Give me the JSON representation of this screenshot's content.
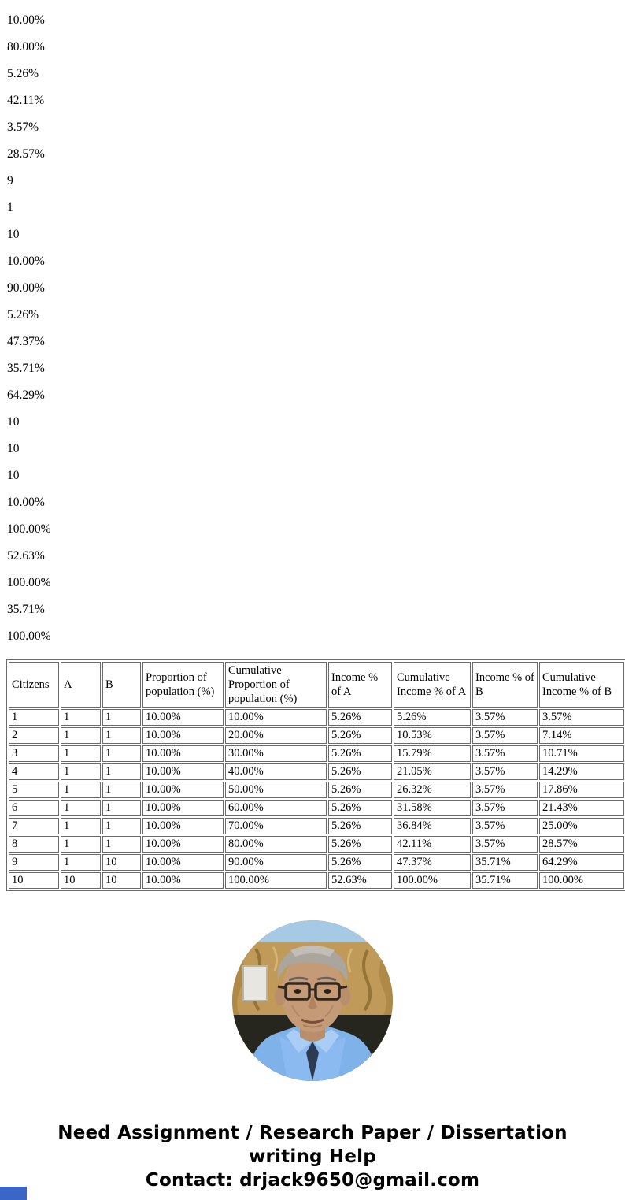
{
  "values_list": [
    "10.00%",
    "80.00%",
    "5.26%",
    "42.11%",
    "3.57%",
    "28.57%",
    "9",
    "1",
    "10",
    "10.00%",
    "90.00%",
    "5.26%",
    "47.37%",
    "35.71%",
    "64.29%",
    "10",
    "10",
    "10",
    "10.00%",
    "100.00%",
    "52.63%",
    "100.00%",
    "35.71%",
    "100.00%"
  ],
  "table": {
    "headers": [
      "Citizens",
      "A",
      "B",
      "Proportion of population (%)",
      "Cumulative Proportion of population (%)",
      "Income % of A",
      "Cumulative Income % of A",
      "Income % of B",
      "Cumulative Income % of B"
    ],
    "rows": [
      [
        "1",
        "1",
        "1",
        "10.00%",
        "10.00%",
        "5.26%",
        "5.26%",
        "3.57%",
        "3.57%"
      ],
      [
        "2",
        "1",
        "1",
        "10.00%",
        "20.00%",
        "5.26%",
        "10.53%",
        "3.57%",
        "7.14%"
      ],
      [
        "3",
        "1",
        "1",
        "10.00%",
        "30.00%",
        "5.26%",
        "15.79%",
        "3.57%",
        "10.71%"
      ],
      [
        "4",
        "1",
        "1",
        "10.00%",
        "40.00%",
        "5.26%",
        "21.05%",
        "3.57%",
        "14.29%"
      ],
      [
        "5",
        "1",
        "1",
        "10.00%",
        "50.00%",
        "5.26%",
        "26.32%",
        "3.57%",
        "17.86%"
      ],
      [
        "6",
        "1",
        "1",
        "10.00%",
        "60.00%",
        "5.26%",
        "31.58%",
        "3.57%",
        "21.43%"
      ],
      [
        "7",
        "1",
        "1",
        "10.00%",
        "70.00%",
        "5.26%",
        "36.84%",
        "3.57%",
        "25.00%"
      ],
      [
        "8",
        "1",
        "1",
        "10.00%",
        "80.00%",
        "5.26%",
        "42.11%",
        "3.57%",
        "28.57%"
      ],
      [
        "9",
        "1",
        "10",
        "10.00%",
        "90.00%",
        "5.26%",
        "47.37%",
        "35.71%",
        "64.29%"
      ],
      [
        "10",
        "10",
        "10",
        "10.00%",
        "100.00%",
        "52.63%",
        "100.00%",
        "35.71%",
        "100.00%"
      ]
    ]
  },
  "avatar": {
    "icon": "tutor-photo-icon",
    "description": "circular photo of a gray-haired man with glasses in a light blue shirt"
  },
  "footer": {
    "line1": "Need Assignment / Research Paper / Dissertation",
    "line2": "writing Help",
    "line3": "Contact: drjack9650@gmail.com"
  },
  "colors": {
    "table_border": "#6b6b6b",
    "accent_blue": "#3a66c8"
  }
}
